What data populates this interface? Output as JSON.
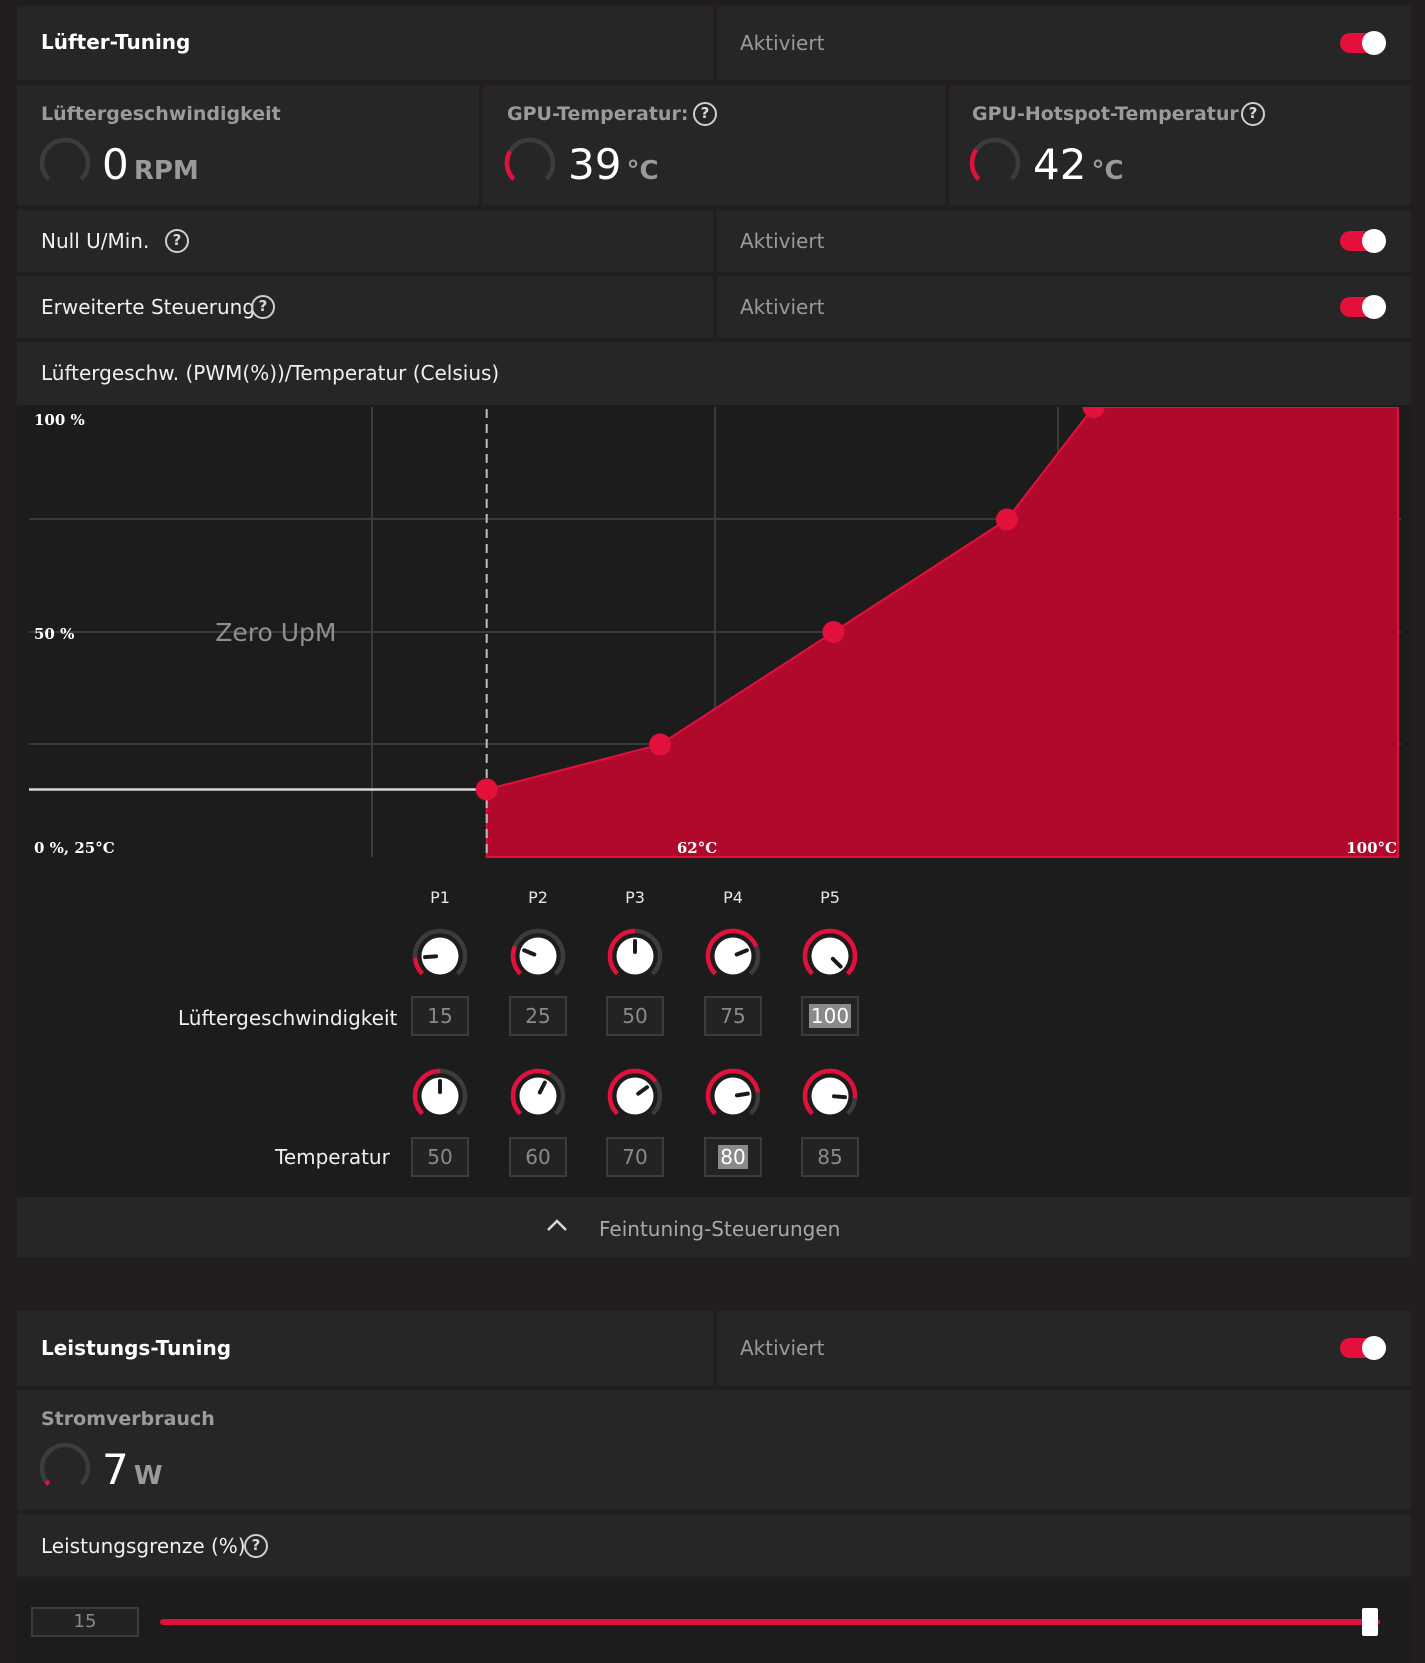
{
  "fan_tuning": {
    "title": "Lüfter-Tuning",
    "state": "Aktiviert",
    "enabled": true,
    "fan_speed": {
      "label": "Lüftergeschwindigkeit",
      "value": "0",
      "unit": "RPM"
    },
    "gpu_temp": {
      "label": "GPU-Temperatur:",
      "value": "39",
      "unit": "°C"
    },
    "hotspot_temp": {
      "label": "GPU-Hotspot-Temperatur",
      "value": "42",
      "unit": "°C"
    },
    "zero_rpm": {
      "label": "Null U/Min.",
      "state": "Aktiviert",
      "enabled": true
    },
    "advanced": {
      "label": "Erweiterte Steuerung",
      "state": "Aktiviert",
      "enabled": true
    },
    "curve_title": "Lüftergeschw. (PWM(%))/Temperatur (Celsius)",
    "fine_tuning_label": "Feintuning-Steuerungen"
  },
  "chart_data": {
    "type": "area",
    "title": "Lüftergeschw. (PWM(%))/Temperatur (Celsius)",
    "x": [
      50,
      60,
      70,
      80,
      85
    ],
    "values": [
      15,
      25,
      50,
      75,
      100
    ],
    "xlim": [
      25,
      100
    ],
    "ylim": [
      0,
      100
    ],
    "y_tick_labels": [
      "100 %",
      "50 %",
      "0 %, 25°C"
    ],
    "x_tick_labels": [
      "62°C",
      "100°C"
    ],
    "zero_label": "Zero UpM",
    "colors": {
      "fill": "#b0092b",
      "line": "#e3103b",
      "point": "#e3103b"
    },
    "grid": true
  },
  "points": {
    "labels": [
      "P1",
      "P2",
      "P3",
      "P4",
      "P5"
    ],
    "speed_label": "Lüftergeschwindigkeit",
    "speed": [
      "15",
      "25",
      "50",
      "75",
      "100"
    ],
    "temp_label": "Temperatur",
    "temp": [
      "50",
      "60",
      "70",
      "80",
      "85"
    ],
    "temp_fraction": [
      0.5,
      0.6,
      0.7,
      0.8,
      0.85
    ]
  },
  "power_tuning": {
    "title": "Leistungs-Tuning",
    "state": "Aktiviert",
    "enabled": true,
    "consumption": {
      "label": "Stromverbrauch",
      "value": "7",
      "unit": "W"
    },
    "limit": {
      "label": "Leistungsgrenze (%)",
      "value": "15",
      "slider_fraction": 1.0
    }
  },
  "icons": [
    "help-icon",
    "toggle-switch",
    "gauge-icon",
    "knob-icon",
    "chevron-up-icon"
  ],
  "colors": {
    "accent": "#e3103b",
    "panel": "#262626",
    "background": "#221e1f"
  }
}
